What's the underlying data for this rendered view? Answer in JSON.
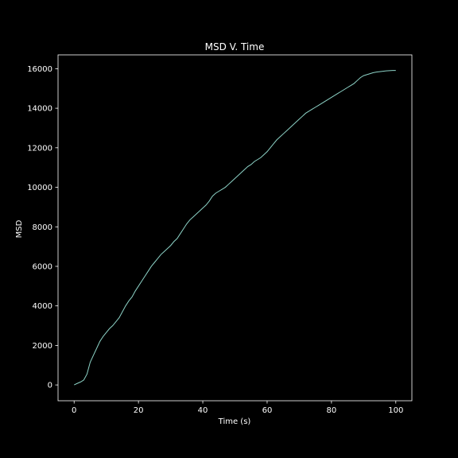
{
  "chart_data": {
    "type": "line",
    "title": "MSD V. Time",
    "xlabel": "Time (s)",
    "ylabel": "MSD",
    "xlim": [
      -5,
      105
    ],
    "ylim": [
      -800,
      16700
    ],
    "xticks": [
      0,
      20,
      40,
      60,
      80,
      100
    ],
    "yticks": [
      0,
      2000,
      4000,
      6000,
      8000,
      10000,
      12000,
      14000,
      16000
    ],
    "grid": false,
    "colors": {
      "background": "#000000",
      "frame": "#ffffff",
      "text": "#ffffff",
      "line": "#8dd3c7"
    },
    "series": [
      {
        "x": [
          0,
          1,
          2,
          3,
          4,
          5,
          6,
          7,
          8,
          9,
          10,
          11,
          12,
          13,
          14,
          15,
          16,
          17,
          18,
          19,
          20,
          21,
          22,
          23,
          24,
          25,
          26,
          27,
          28,
          29,
          30,
          31,
          32,
          33,
          34,
          35,
          36,
          37,
          38,
          39,
          40,
          41,
          42,
          43,
          44,
          45,
          46,
          47,
          48,
          49,
          50,
          51,
          52,
          53,
          54,
          55,
          56,
          57,
          58,
          59,
          60,
          61,
          62,
          63,
          64,
          65,
          66,
          67,
          68,
          69,
          70,
          71,
          72,
          73,
          74,
          75,
          76,
          77,
          78,
          79,
          80,
          81,
          82,
          83,
          84,
          85,
          86,
          87,
          88,
          89,
          90,
          91,
          92,
          93,
          94,
          95,
          96,
          97,
          98,
          99,
          100
        ],
        "values": [
          0,
          80,
          150,
          250,
          550,
          1150,
          1500,
          1850,
          2200,
          2450,
          2650,
          2850,
          3000,
          3200,
          3400,
          3700,
          4000,
          4250,
          4450,
          4750,
          5000,
          5250,
          5500,
          5750,
          6000,
          6200,
          6400,
          6600,
          6750,
          6900,
          7050,
          7250,
          7400,
          7650,
          7900,
          8150,
          8350,
          8500,
          8650,
          8800,
          8950,
          9100,
          9300,
          9550,
          9700,
          9800,
          9900,
          10000,
          10150,
          10300,
          10450,
          10600,
          10750,
          10900,
          11050,
          11150,
          11300,
          11400,
          11500,
          11650,
          11800,
          12000,
          12200,
          12400,
          12550,
          12700,
          12850,
          13000,
          13150,
          13300,
          13450,
          13600,
          13750,
          13850,
          13950,
          14050,
          14150,
          14250,
          14350,
          14450,
          14550,
          14650,
          14750,
          14850,
          14950,
          15050,
          15150,
          15250,
          15400,
          15550,
          15650,
          15700,
          15750,
          15800,
          15830,
          15850,
          15870,
          15890,
          15900,
          15910,
          15910
        ]
      }
    ]
  }
}
